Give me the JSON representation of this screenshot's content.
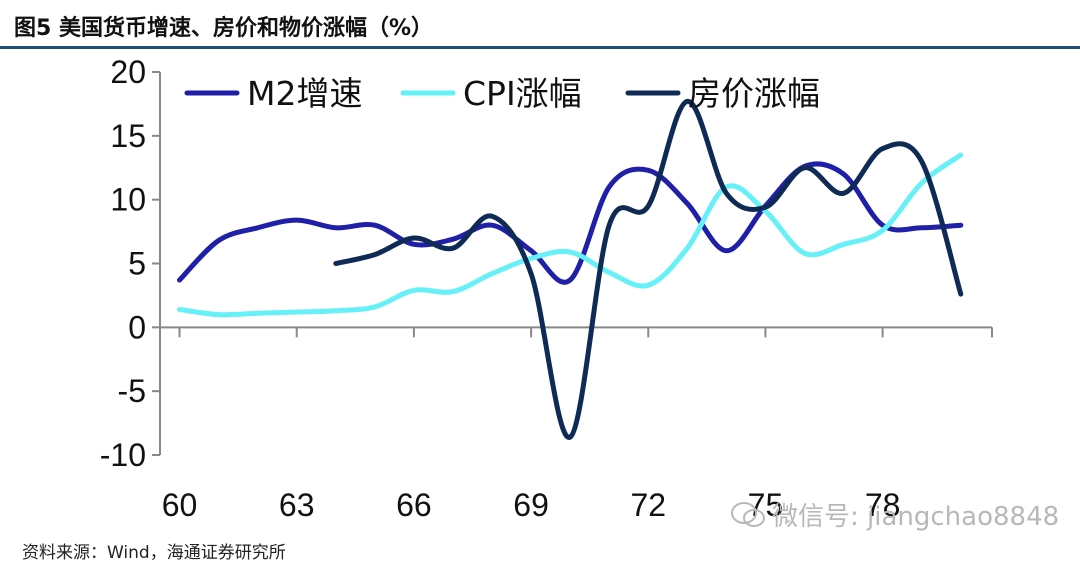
{
  "header": {
    "title": "图5  美国货币增速、房价和物价涨幅（%）"
  },
  "footer": {
    "source": "资料来源：Wind，海通证券研究所",
    "watermark": "微信号: jiangchao8848"
  },
  "colors": {
    "m2": "#1f1fa8",
    "cpi": "#66f0f8",
    "house": "#0f2a55",
    "axis": "#888888",
    "title_rule": "#1f4e79"
  },
  "chart_data": {
    "type": "line",
    "title": "",
    "xlabel": "",
    "ylabel": "",
    "xlim": [
      59.5,
      80.8
    ],
    "ylim": [
      -10,
      20
    ],
    "yticks": [
      20,
      15,
      10,
      5,
      0,
      -5,
      -10
    ],
    "xticks": [
      60,
      63,
      66,
      69,
      72,
      75,
      78
    ],
    "xtick_labels": [
      "60",
      "63",
      "66",
      "69",
      "72",
      "75",
      "78"
    ],
    "grid": false,
    "legend": "top-left",
    "series": [
      {
        "name": "M2增速",
        "color": "#1f1fa8",
        "x": [
          60,
          61,
          62,
          63,
          64,
          65,
          66,
          67,
          68,
          69,
          70,
          71,
          72,
          73,
          74,
          75,
          76,
          77,
          78,
          79,
          80
        ],
        "y": [
          3.7,
          6.8,
          7.8,
          8.4,
          7.8,
          8.0,
          6.5,
          6.9,
          8.0,
          6.0,
          3.7,
          11.0,
          12.3,
          9.7,
          6.0,
          9.5,
          12.6,
          12.0,
          8.0,
          7.8,
          8.0
        ]
      },
      {
        "name": "CPI涨幅",
        "color": "#66f0f8",
        "x": [
          60,
          61,
          62,
          63,
          64,
          65,
          66,
          67,
          68,
          69,
          70,
          71,
          72,
          73,
          74,
          75,
          76,
          77,
          78,
          79,
          80
        ],
        "y": [
          1.4,
          1.0,
          1.1,
          1.2,
          1.3,
          1.6,
          2.9,
          2.8,
          4.2,
          5.4,
          5.9,
          4.3,
          3.3,
          6.2,
          11.0,
          9.1,
          5.8,
          6.5,
          7.6,
          11.3,
          13.5
        ]
      },
      {
        "name": "房价涨幅",
        "color": "#0f2a55",
        "x": [
          64,
          65,
          66,
          67,
          68,
          69,
          70,
          71,
          72,
          73,
          74,
          75,
          76,
          77,
          78,
          79,
          80
        ],
        "y": [
          5.0,
          5.7,
          7.0,
          6.2,
          8.7,
          4.2,
          -8.6,
          8.0,
          9.5,
          17.7,
          10.5,
          9.4,
          12.5,
          10.5,
          14.0,
          13.0,
          2.6
        ]
      }
    ]
  }
}
